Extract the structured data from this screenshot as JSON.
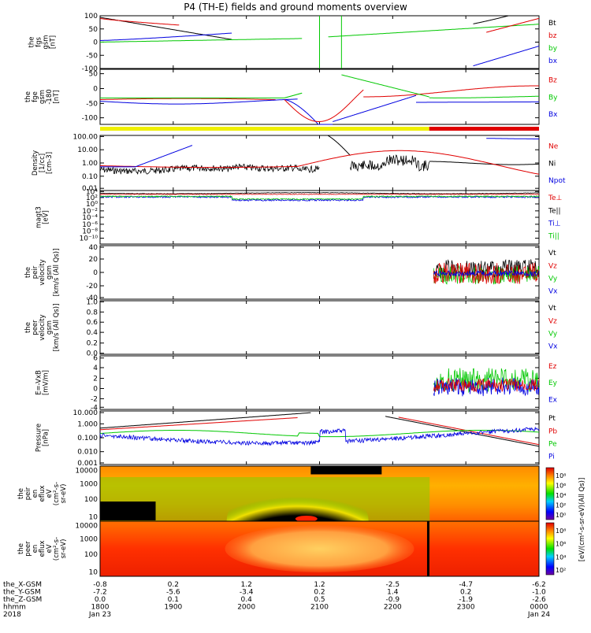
{
  "title": "P4 (TH-E) fields and ground moments overview",
  "colors": {
    "black": "#000000",
    "red": "#e00000",
    "green": "#00c800",
    "blue": "#0000e0",
    "yellow": "#f0f000",
    "bar_red": "#e00000"
  },
  "panels": [
    {
      "ylabel": [
        "the",
        "fgs",
        "gsm",
        "[nT]"
      ],
      "ticks": [
        "100",
        "50",
        "0",
        "-50",
        "-100"
      ],
      "legend": [
        {
          "text": "Bt",
          "color": "black"
        },
        {
          "text": "bz",
          "color": "red"
        },
        {
          "text": "by",
          "color": "green"
        },
        {
          "text": "bx",
          "color": "blue"
        }
      ]
    },
    {
      "ylabel": [
        "the",
        "fge",
        "gsm",
        "-180",
        "[nT]"
      ],
      "ticks": [
        "50",
        "0",
        "-50",
        "-100"
      ],
      "legend": [
        {
          "text": "Bz",
          "color": "red"
        },
        {
          "text": "By",
          "color": "green"
        },
        {
          "text": "Bx",
          "color": "blue"
        }
      ]
    },
    {
      "ylabel": [
        "Density",
        "[1/cc]",
        "[cm-3]"
      ],
      "ticks": [
        "100.00",
        "10.00",
        "1.00",
        "0.10",
        "0.01"
      ],
      "legend": [
        {
          "text": "Ne",
          "color": "red"
        },
        {
          "text": "Ni",
          "color": "black"
        },
        {
          "text": "Npot",
          "color": "blue"
        }
      ]
    },
    {
      "ylabel": [
        "magt3",
        "[eV]"
      ],
      "ticks": [
        "10⁴",
        "10²",
        "10⁰",
        "10⁻²",
        "10⁻⁴",
        "10⁻⁶",
        "10⁻⁸",
        "10⁻¹⁰"
      ],
      "legend": [
        {
          "text": "Te⊥",
          "color": "red"
        },
        {
          "text": "Te||",
          "color": "black"
        },
        {
          "text": "Ti⊥",
          "color": "blue"
        },
        {
          "text": "Ti||",
          "color": "green"
        }
      ]
    },
    {
      "ylabel": [
        "the",
        "peir",
        "velocity",
        "gsm",
        "[km/s (All Qs)]"
      ],
      "ticks": [
        "40",
        "20",
        "0",
        "-20",
        "-40"
      ],
      "legend": [
        {
          "text": "Vt",
          "color": "black"
        },
        {
          "text": "Vz",
          "color": "red"
        },
        {
          "text": "Vy",
          "color": "green"
        },
        {
          "text": "Vx",
          "color": "blue"
        }
      ]
    },
    {
      "ylabel": [
        "the",
        "peer",
        "velocity",
        "gsm",
        "[km/s (All Qs)]"
      ],
      "ticks": [
        "1.0",
        "0.8",
        "0.6",
        "0.4",
        "0.2",
        "0.0"
      ],
      "legend": [
        {
          "text": "Vt",
          "color": "black"
        },
        {
          "text": "Vz",
          "color": "red"
        },
        {
          "text": "Vy",
          "color": "green"
        },
        {
          "text": "Vx",
          "color": "blue"
        }
      ]
    },
    {
      "ylabel": [
        "E=-VxB",
        "[mV/m]"
      ],
      "ticks": [
        "6",
        "4",
        "2",
        "0",
        "-2",
        "-4"
      ],
      "legend": [
        {
          "text": "Ez",
          "color": "red"
        },
        {
          "text": "Ey",
          "color": "green"
        },
        {
          "text": "Ex",
          "color": "blue"
        }
      ]
    },
    {
      "ylabel": [
        "Pressure",
        "[nPa]"
      ],
      "ticks": [
        "10.000",
        "1.000",
        "0.100",
        "0.010",
        "0.001"
      ],
      "legend": [
        {
          "text": "Pt",
          "color": "black"
        },
        {
          "text": "Pb",
          "color": "red"
        },
        {
          "text": "Pe",
          "color": "green"
        },
        {
          "text": "Pi",
          "color": "blue"
        }
      ]
    },
    {
      "ylabel": [
        "the",
        "peir",
        "en",
        "eflux",
        "eV",
        "(cm²-s-",
        "sr-eV)"
      ],
      "ticks": [
        "10000",
        "1000",
        "100",
        "10"
      ],
      "colorbar_ticks": [
        "10⁸",
        "10⁶",
        "10⁴",
        "10²",
        "10⁰"
      ],
      "colorbar_label": "[eV/(cm²-s-sr-eV)(All Qs)]"
    },
    {
      "ylabel": [
        "the",
        "peer",
        "en",
        "eflux",
        "eV",
        "(cm²-s-",
        "sr-eV)"
      ],
      "ticks": [
        "10000",
        "1000",
        "100",
        "10"
      ],
      "colorbar_ticks": [
        "10⁸",
        "10⁶",
        "10⁴",
        "10²"
      ],
      "colorbar_label": "[eV/(cm²-s-sr-eV)]"
    }
  ],
  "xaxis": {
    "rows": [
      {
        "label": "the_X-GSM",
        "values": [
          "-0.8",
          "0.2",
          "1.2",
          "1.2",
          "-2.5",
          "-4.7",
          "-6.2"
        ]
      },
      {
        "label": "the_Y-GSM",
        "values": [
          "-7.2",
          "-5.6",
          "-3.4",
          "0.2",
          "1.4",
          "0.2",
          "-1.0"
        ]
      },
      {
        "label": "the_Z-GSM",
        "values": [
          "0.0",
          "0.1",
          "0.4",
          "0.5",
          "-0.9",
          "-1.9",
          "-2.6"
        ]
      },
      {
        "label": "hhmm",
        "values": [
          "1800",
          "1900",
          "2000",
          "2100",
          "2200",
          "2300",
          "0000"
        ]
      }
    ],
    "year": "2018",
    "date_start": "Jan 23",
    "date_end": "Jan 24"
  },
  "chart_data": [
    {
      "type": "line",
      "title": "P4 (TH-E) fields and ground moments overview",
      "ylabel": "the fgs gsm [nT]",
      "ylim": [
        -100,
        100
      ],
      "x": [
        "1800",
        "1830",
        "1900",
        "1930",
        "2000",
        "2030",
        "2100",
        "2130",
        "2200",
        "2230",
        "2300",
        "2330",
        "0000"
      ],
      "series": [
        {
          "name": "Bt",
          "values": [
            85,
            40,
            20,
            30,
            100,
            100,
            100,
            100,
            100,
            40,
            25,
            45,
            90
          ]
        },
        {
          "name": "bz",
          "values": [
            82,
            35,
            15,
            25,
            100,
            100,
            100,
            100,
            100,
            30,
            20,
            40,
            85
          ]
        },
        {
          "name": "by",
          "values": [
            -2,
            0,
            5,
            25,
            100,
            100,
            100,
            100,
            100,
            20,
            8,
            5,
            0
          ]
        },
        {
          "name": "bx",
          "values": [
            -20,
            -30,
            -50,
            -90,
            -100,
            -100,
            -100,
            -100,
            -100,
            -95,
            -60,
            -45,
            -25
          ]
        }
      ]
    },
    {
      "type": "line",
      "ylabel": "the fge gsm -180 [nT]",
      "ylim": [
        -120,
        70
      ],
      "x": [
        "1800",
        "1830",
        "1900",
        "1930",
        "2000",
        "2030",
        "2100",
        "2130",
        "2200",
        "2230",
        "2300",
        "2330",
        "0000"
      ],
      "series": [
        {
          "name": "Bz",
          "values": [
            0,
            2,
            5,
            0,
            -20,
            -80,
            55,
            -30,
            -8,
            5,
            10,
            8,
            3
          ]
        },
        {
          "name": "By",
          "values": [
            -5,
            -5,
            -2,
            2,
            20,
            70,
            70,
            70,
            20,
            10,
            2,
            0,
            -5
          ]
        },
        {
          "name": "Bx",
          "values": [
            -5,
            -8,
            -10,
            -15,
            -40,
            -90,
            -110,
            -40,
            -10,
            0,
            0,
            -3,
            -5
          ]
        }
      ]
    },
    {
      "type": "line",
      "ylabel": "Density [1/cc] [cm-3]",
      "ylim": [
        0.01,
        100
      ],
      "x": [
        "1800",
        "1830",
        "1900",
        "1930",
        "2000",
        "2030",
        "2100",
        "2130",
        "2200",
        "2230",
        "2300",
        "2330",
        "0000"
      ],
      "series": [
        {
          "name": "Ne",
          "values": [
            0.5,
            0.6,
            0.7,
            0.2,
            0.15,
            0.6,
            2.0,
            1.5,
            0.5,
            1.5,
            1.0,
            0.7,
            0.6
          ]
        },
        {
          "name": "Ni",
          "values": [
            0.3,
            0.2,
            0.4,
            0.1,
            0.08,
            0.5,
            30,
            0.8,
            0.3,
            3.0,
            0.8,
            0.4,
            0.4
          ]
        },
        {
          "name": "Npot",
          "values": [
            0.5,
            1.0,
            100,
            null,
            null,
            null,
            null,
            null,
            null,
            null,
            null,
            30,
            15
          ]
        }
      ]
    },
    {
      "type": "line",
      "ylabel": "magt3 [eV]",
      "ylim": [
        1e-10,
        10000.0
      ],
      "x": [
        "1800",
        "1900",
        "2000",
        "2100",
        "2200",
        "2300",
        "0000"
      ],
      "series": [
        {
          "name": "Te⊥",
          "values": [
            1000,
            900,
            700,
            800,
            1000,
            1100,
            1200
          ]
        },
        {
          "name": "Te||",
          "values": [
            1200,
            1000,
            800,
            900,
            1200,
            1300,
            1400
          ]
        },
        {
          "name": "Ti⊥",
          "values": [
            500,
            300,
            150,
            100,
            300,
            700,
            800
          ]
        },
        {
          "name": "Ti||",
          "values": [
            600,
            400,
            200,
            150,
            400,
            800,
            900
          ]
        }
      ]
    },
    {
      "type": "line",
      "ylabel": "the peir velocity gsm [km/s (All Qs)]",
      "ylim": [
        -40,
        40
      ],
      "x": [
        "2250",
        "2300",
        "2330",
        "0000"
      ],
      "series": [
        {
          "name": "Vt",
          "values": [
            5,
            20,
            25,
            30
          ]
        },
        {
          "name": "Vz",
          "values": [
            0,
            -10,
            -8,
            -5
          ]
        },
        {
          "name": "Vy",
          "values": [
            0,
            5,
            8,
            5
          ]
        },
        {
          "name": "Vx",
          "values": [
            0,
            -5,
            -10,
            -8
          ]
        }
      ]
    },
    {
      "type": "line",
      "ylabel": "the peer velocity gsm [km/s (All Qs)]",
      "ylim": [
        0,
        1
      ],
      "x": [],
      "series": []
    },
    {
      "type": "line",
      "ylabel": "E=-VxB [mV/m]",
      "ylim": [
        -4,
        6
      ],
      "x": [
        "2250",
        "2300",
        "2330",
        "0000"
      ],
      "series": [
        {
          "name": "Ez",
          "values": [
            0,
            0.5,
            0.3,
            0.2
          ]
        },
        {
          "name": "Ey",
          "values": [
            1.5,
            2.5,
            1.5,
            1.0
          ]
        },
        {
          "name": "Ex",
          "values": [
            0,
            -1.5,
            -1.0,
            -0.5
          ]
        }
      ]
    },
    {
      "type": "line",
      "ylabel": "Pressure [nPa]",
      "ylim": [
        0.001,
        10
      ],
      "x": [
        "1800",
        "1830",
        "1900",
        "1930",
        "2000",
        "2030",
        "2100",
        "2130",
        "2200",
        "2230",
        "2300",
        "2330",
        "0000"
      ],
      "series": [
        {
          "name": "Pt",
          "values": [
            2.0,
            1.0,
            0.4,
            0.3,
            2.0,
            10,
            10,
            10,
            10,
            5.0,
            2.0,
            6.0,
            10
          ]
        },
        {
          "name": "Pb",
          "values": [
            1.8,
            0.9,
            0.35,
            0.25,
            1.8,
            10,
            10,
            10,
            10,
            4.5,
            1.8,
            5.5,
            10
          ]
        },
        {
          "name": "Pe",
          "values": [
            0.15,
            0.15,
            0.1,
            0.05,
            0.08,
            0.15,
            0.15,
            0.08,
            0.04,
            0.05,
            0.08,
            0.1,
            0.1
          ]
        },
        {
          "name": "Pi",
          "values": [
            0.12,
            0.06,
            0.04,
            0.03,
            0.02,
            0.05,
            0.1,
            0.03,
            0.01,
            0.02,
            0.06,
            0.12,
            0.2
          ]
        }
      ]
    },
    {
      "type": "heatmap",
      "ylabel": "the peir en eflux eV (cm²-s-sr-eV)",
      "ylim": [
        10,
        20000
      ],
      "colorbar": {
        "label": "[eV/(cm²-s-sr-eV)(All Qs)]",
        "range": [
          1,
          100000000.0
        ],
        "log": true
      }
    },
    {
      "type": "heatmap",
      "ylabel": "the peer en eflux eV (cm²-s-sr-eV)",
      "ylim": [
        10,
        20000
      ],
      "colorbar": {
        "label": "[eV/(cm²-s-sr-eV)]",
        "range": [
          10.0,
          100000000.0
        ],
        "log": true
      }
    }
  ]
}
